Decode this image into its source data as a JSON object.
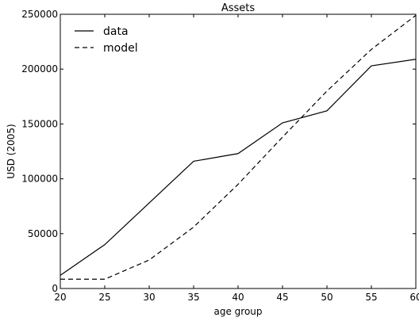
{
  "chart_data": {
    "type": "line",
    "title": "Assets",
    "xlabel": "age group",
    "ylabel": "USD (2005)",
    "xlim": [
      20,
      60
    ],
    "ylim": [
      0,
      250000
    ],
    "xticks": [
      20,
      25,
      30,
      35,
      40,
      45,
      50,
      55,
      60
    ],
    "yticks": [
      0,
      50000,
      100000,
      150000,
      200000,
      250000
    ],
    "xtick_labels": [
      "20",
      "25",
      "30",
      "35",
      "40",
      "45",
      "50",
      "55",
      "60"
    ],
    "ytick_labels": [
      "0",
      "50000",
      "100000",
      "150000",
      "200000",
      "250000"
    ],
    "legend_placement": "top-left",
    "grid": false,
    "series": [
      {
        "name": "data",
        "style": "solid",
        "color": "#000000",
        "x": [
          20,
          25,
          30,
          35,
          40,
          45,
          50,
          55,
          60
        ],
        "y": [
          12000,
          40000,
          78000,
          116000,
          123000,
          151000,
          162000,
          203000,
          209000
        ]
      },
      {
        "name": "model",
        "style": "dashed",
        "color": "#000000",
        "x": [
          20,
          25,
          30,
          35,
          40,
          45,
          50,
          55,
          60
        ],
        "y": [
          8500,
          8500,
          26000,
          56000,
          95000,
          138000,
          180000,
          218000,
          249000
        ]
      }
    ]
  }
}
